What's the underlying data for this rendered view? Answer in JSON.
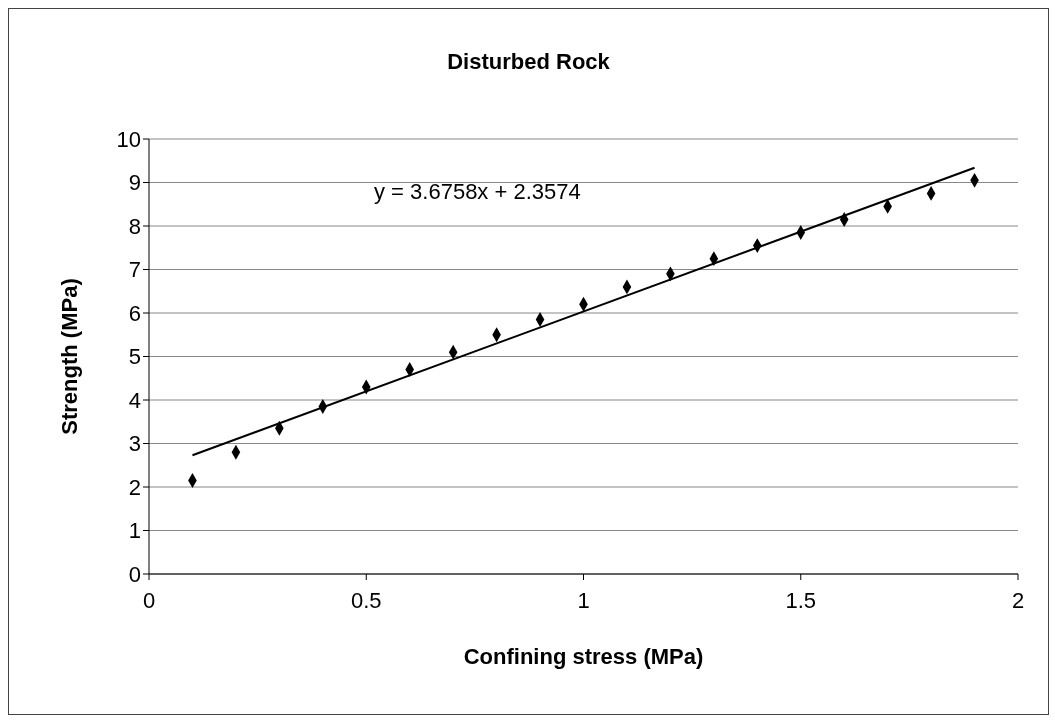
{
  "chart_data": {
    "type": "scatter",
    "title": "Disturbed Rock",
    "xlabel": "Confining stress (MPa)",
    "ylabel": "Strength (MPa)",
    "xlim": [
      0,
      2
    ],
    "xticks": [
      0,
      0.5,
      1,
      1.5,
      2
    ],
    "ylim": [
      0,
      10
    ],
    "yticks": [
      0,
      1,
      2,
      3,
      4,
      5,
      6,
      7,
      8,
      9,
      10
    ],
    "grid": "y",
    "legend": false,
    "annotations": [
      "y = 3.6758x + 2.3574"
    ],
    "series": [
      {
        "marker": "diamond",
        "color": "#000000",
        "x": [
          0.1,
          0.2,
          0.3,
          0.4,
          0.5,
          0.6,
          0.7,
          0.8,
          0.9,
          1.0,
          1.1,
          1.2,
          1.3,
          1.4,
          1.5,
          1.6,
          1.7,
          1.8,
          1.9
        ],
        "values": [
          2.15,
          2.8,
          3.35,
          3.85,
          4.3,
          4.7,
          5.1,
          5.5,
          5.85,
          6.2,
          6.6,
          6.9,
          7.25,
          7.55,
          7.85,
          8.15,
          8.45,
          8.75,
          9.05
        ]
      },
      {
        "type": "line",
        "marker": "none",
        "line_style": "solid",
        "color": "#000000",
        "x": [
          0.1,
          1.9
        ],
        "values": [
          2.73,
          9.34
        ]
      }
    ]
  }
}
